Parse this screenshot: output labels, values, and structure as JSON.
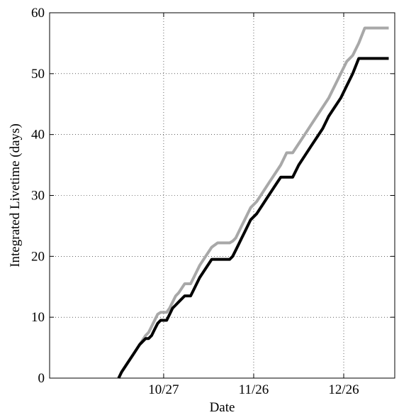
{
  "chart_data": {
    "type": "line",
    "title": "",
    "xlabel": "Date",
    "ylabel": "Integrated Livetime (days)",
    "x_tick_labels": [
      "10/27",
      "11/26",
      "12/26"
    ],
    "y_tick_labels": [
      "0",
      "10",
      "20",
      "30",
      "40",
      "50",
      "60"
    ],
    "y_ticks": [
      0,
      10,
      20,
      30,
      40,
      50,
      60
    ],
    "ylim": [
      0,
      60
    ],
    "x_date_ticks": [
      "10/27",
      "11/26",
      "12/26"
    ],
    "xlim_dates": [
      "9/19",
      "1/12"
    ],
    "grid": true,
    "grid_style": "dotted",
    "legend": "none",
    "series": [
      {
        "color": "#a8a8a8",
        "x": [
          "10/12",
          "10/13",
          "10/15",
          "10/17",
          "10/19",
          "10/21",
          "10/22",
          "10/23",
          "10/24",
          "10/25",
          "10/26",
          "10/27",
          "10/28",
          "10/29",
          "10/30",
          "10/31",
          "11/1",
          "11/3",
          "11/5",
          "11/6",
          "11/8",
          "11/10",
          "11/12",
          "11/14",
          "11/16",
          "11/17",
          "11/18",
          "11/19",
          "11/20",
          "11/21",
          "11/22",
          "11/23",
          "11/24",
          "11/25",
          "11/27",
          "11/29",
          "12/1",
          "12/3",
          "12/5",
          "12/7",
          "12/9",
          "12/11",
          "12/13",
          "12/15",
          "12/17",
          "12/19",
          "12/21",
          "12/23",
          "12/25",
          "12/27",
          "12/29",
          "12/31",
          "1/2",
          "1/4",
          "1/6",
          "1/8",
          "1/10"
        ],
        "y": [
          0,
          1,
          2.5,
          4,
          5.5,
          7,
          7.5,
          8.5,
          9.5,
          10.5,
          10.8,
          10.8,
          10.8,
          11.5,
          12.5,
          13.5,
          14,
          15.5,
          15.5,
          16.5,
          18.5,
          20,
          21.5,
          22.2,
          22.2,
          22.2,
          22.2,
          22.5,
          23,
          24,
          25,
          26,
          27,
          28,
          29,
          30.5,
          32,
          33.5,
          35,
          37,
          37,
          38.5,
          40,
          41.5,
          43,
          44.5,
          46,
          48,
          50,
          52,
          53,
          55,
          57.5,
          57.5,
          57.5,
          57.5,
          57.5
        ]
      },
      {
        "color": "#000000",
        "x": [
          "10/12",
          "10/13",
          "10/15",
          "10/17",
          "10/19",
          "10/21",
          "10/22",
          "10/23",
          "10/24",
          "10/25",
          "10/26",
          "10/27",
          "10/28",
          "10/29",
          "10/30",
          "10/31",
          "11/1",
          "11/3",
          "11/5",
          "11/6",
          "11/8",
          "11/10",
          "11/12",
          "11/14",
          "11/16",
          "11/17",
          "11/18",
          "11/19",
          "11/20",
          "11/21",
          "11/22",
          "11/23",
          "11/24",
          "11/25",
          "11/27",
          "11/29",
          "12/1",
          "12/3",
          "12/5",
          "12/7",
          "12/9",
          "12/11",
          "12/13",
          "12/15",
          "12/17",
          "12/19",
          "12/21",
          "12/23",
          "12/25",
          "12/27",
          "12/29",
          "12/31",
          "1/2",
          "1/4",
          "1/6",
          "1/8",
          "1/10"
        ],
        "y": [
          0,
          1,
          2.5,
          4,
          5.5,
          6.5,
          6.5,
          7,
          8,
          9,
          9.5,
          9.5,
          9.5,
          10.5,
          11.5,
          12,
          12.5,
          13.5,
          13.5,
          14.5,
          16.5,
          18,
          19.5,
          19.5,
          19.5,
          19.5,
          19.5,
          20,
          21,
          22,
          23,
          24,
          25,
          26,
          27,
          28.5,
          30,
          31.5,
          33,
          33,
          33,
          35,
          36.5,
          38,
          39.5,
          41,
          43,
          44.5,
          46,
          48,
          50,
          52.5,
          52.5,
          52.5,
          52.5,
          52.5,
          52.5
        ]
      }
    ]
  }
}
